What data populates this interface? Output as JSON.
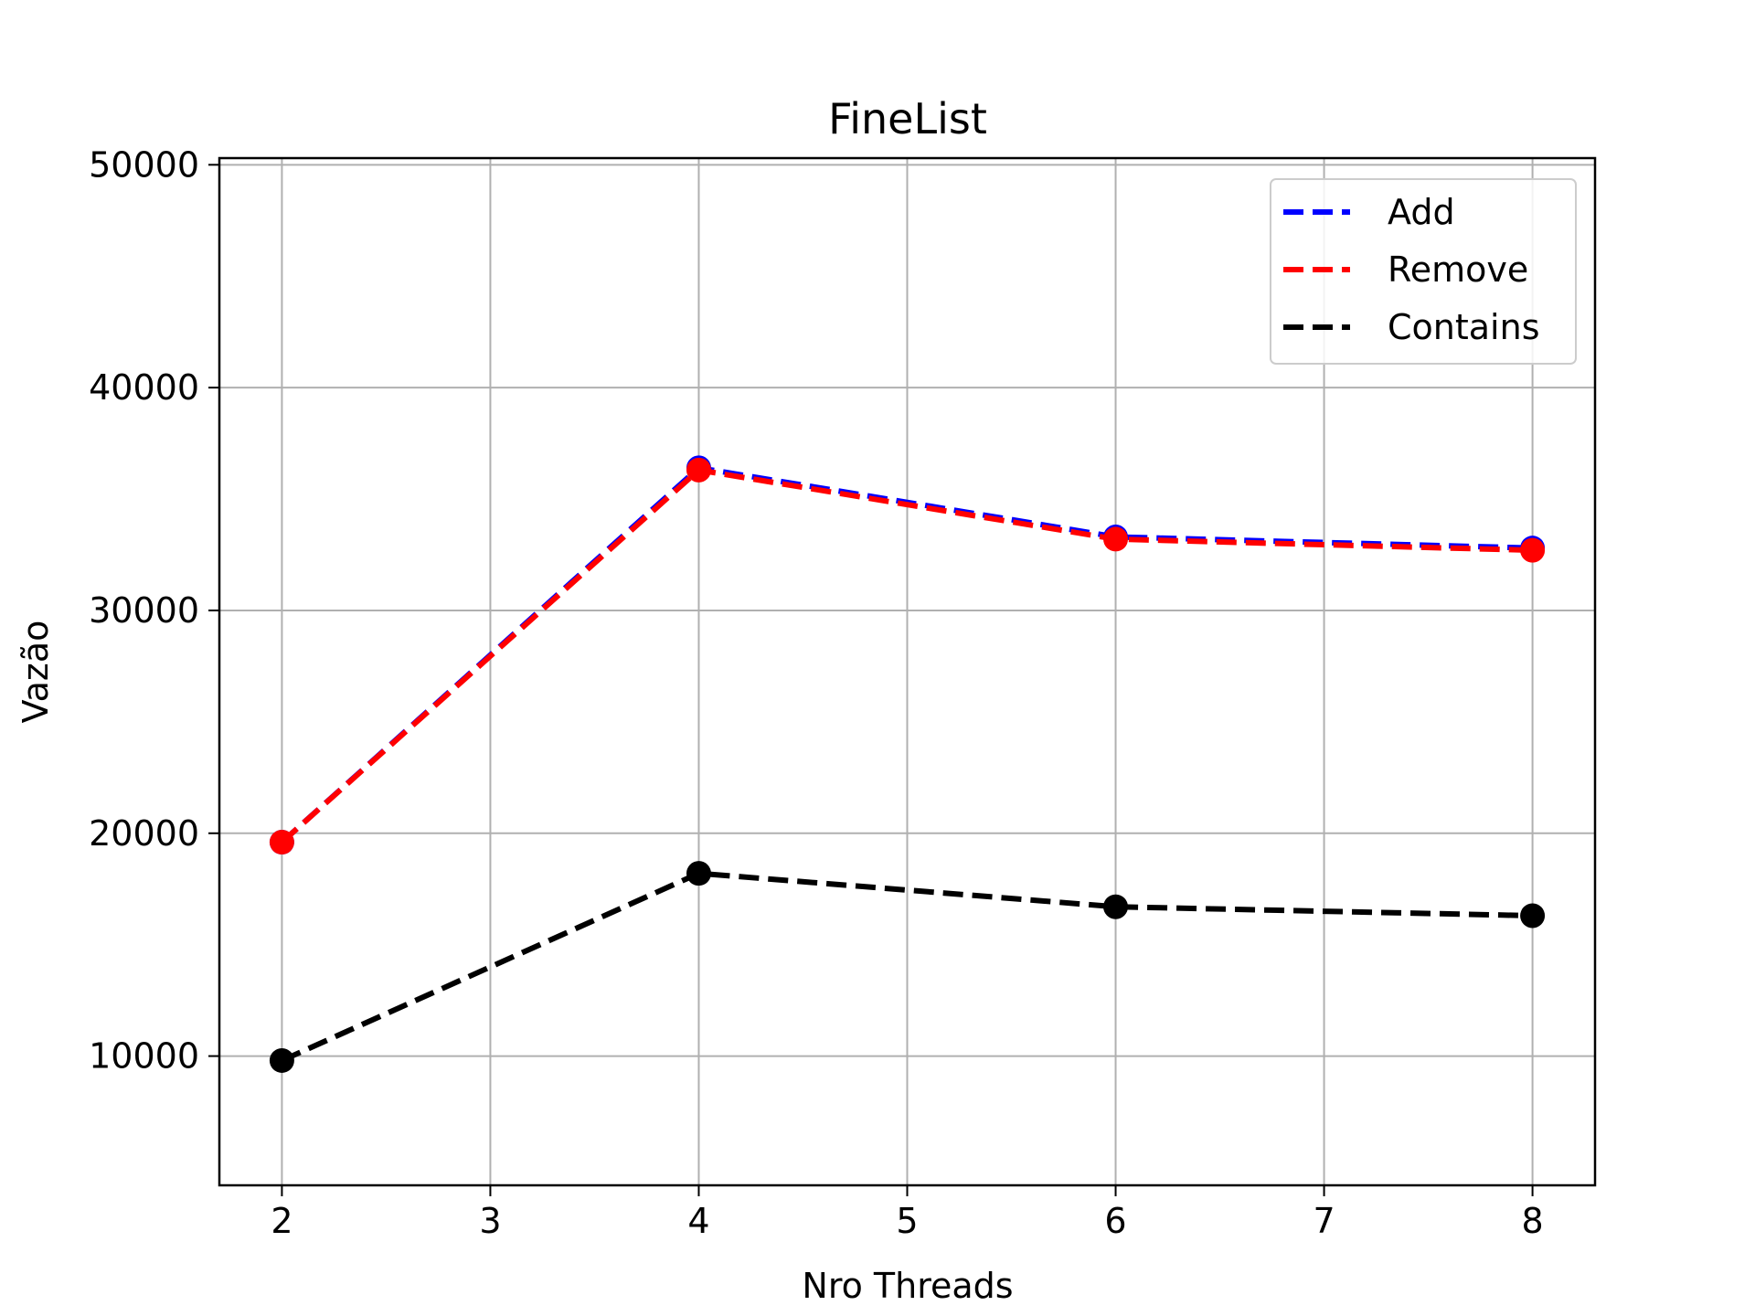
{
  "chart_data": {
    "type": "line",
    "title": "FineList",
    "xlabel": "Nro Threads",
    "ylabel": "Vazão",
    "x": [
      2,
      4,
      6,
      8
    ],
    "xlim": [
      1.7,
      8.3
    ],
    "ylim": [
      4200,
      50300
    ],
    "xticks": [
      "2",
      "3",
      "4",
      "5",
      "6",
      "7",
      "8"
    ],
    "yticks": [
      "10000",
      "20000",
      "30000",
      "40000",
      "50000"
    ],
    "grid": true,
    "legend_position": "top-right",
    "series": [
      {
        "name": "Add",
        "values": [
          19600,
          36400,
          33300,
          32800
        ],
        "color": "#0000ff",
        "line_style": "dashed",
        "marker": "circle"
      },
      {
        "name": "Remove",
        "values": [
          19600,
          36300,
          33200,
          32700
        ],
        "color": "#ff0000",
        "line_style": "dashed",
        "marker": "circle"
      },
      {
        "name": "Contains",
        "values": [
          9800,
          18200,
          16700,
          16300
        ],
        "color": "#000000",
        "line_style": "dashed",
        "marker": "circle"
      }
    ]
  }
}
